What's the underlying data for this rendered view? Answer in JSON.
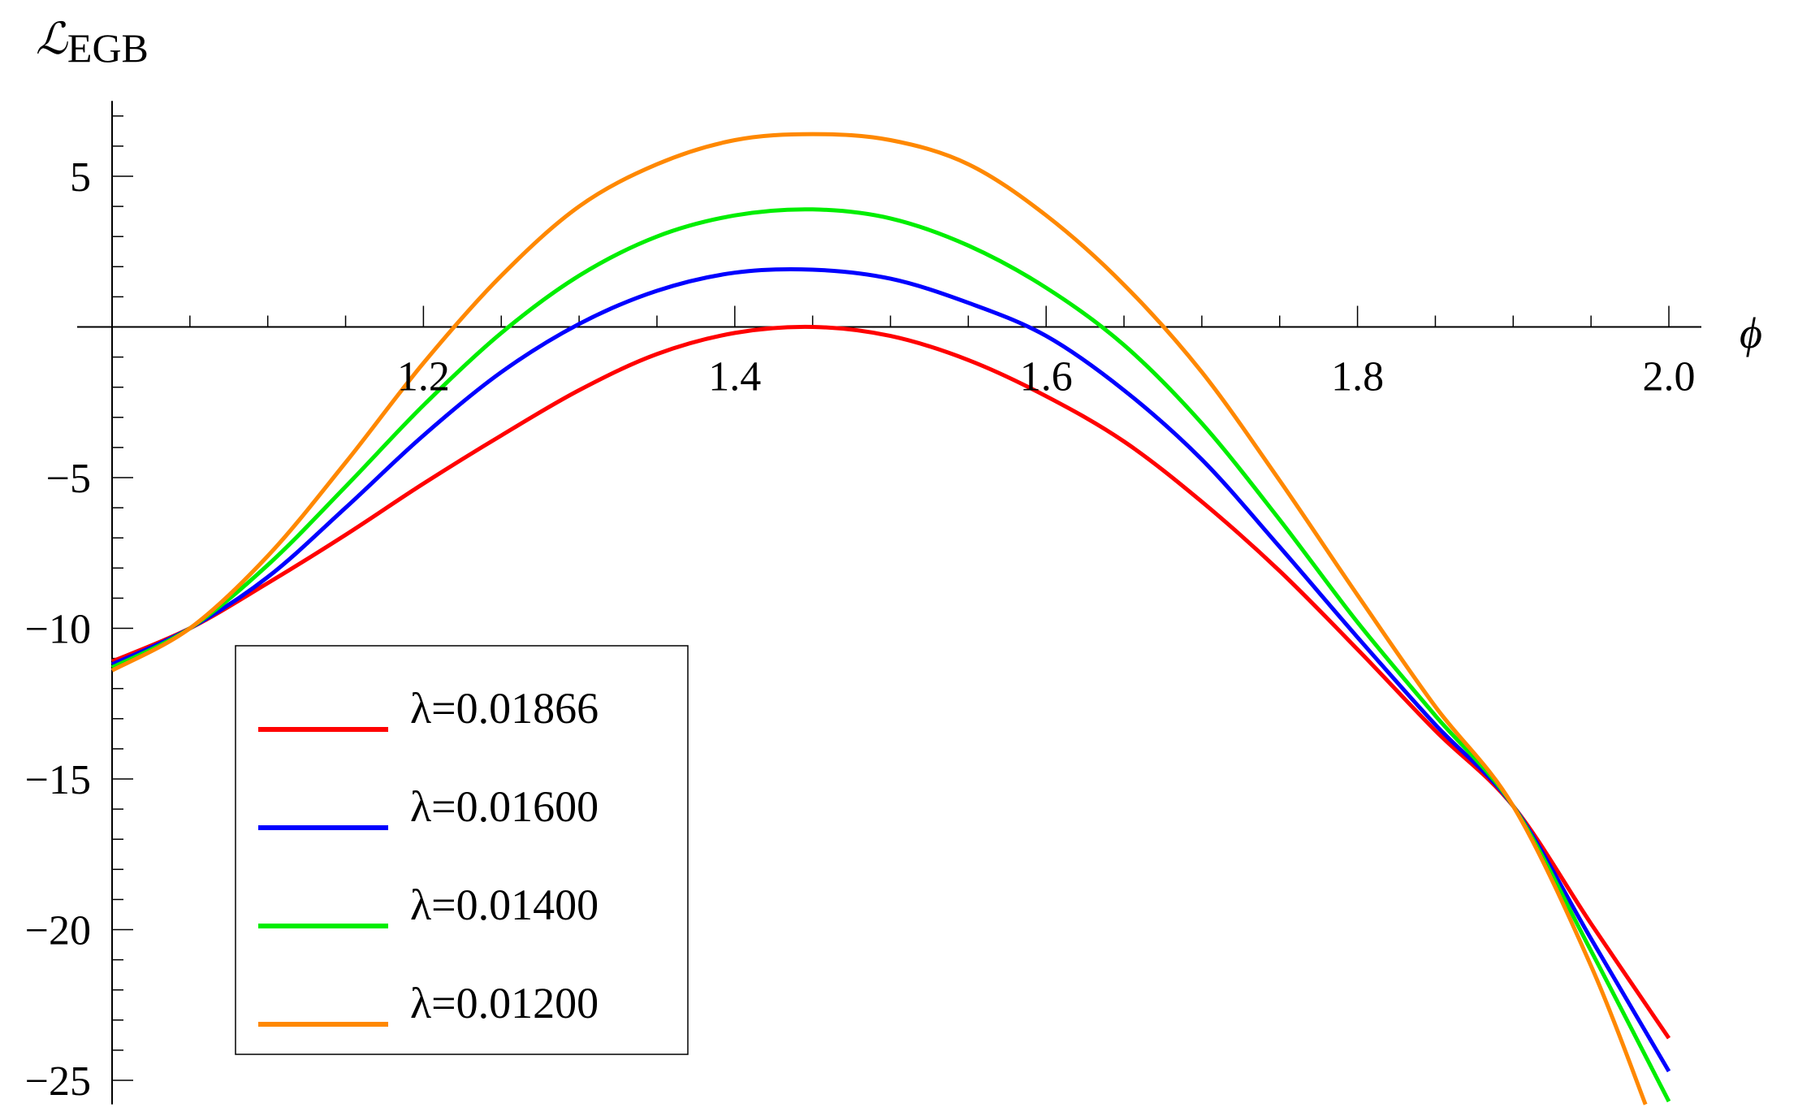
{
  "chart_data": {
    "type": "line",
    "title": "",
    "xlabel": "ϕ",
    "ylabel_main": "ℒ",
    "ylabel_sub": "EGB",
    "xlim": [
      1.0,
      2.0
    ],
    "ylim": [
      -25.8,
      7.5
    ],
    "x_ticks": [
      1.2,
      1.4,
      1.6,
      1.8,
      2.0
    ],
    "x_tick_labels": [
      "1.2",
      "1.4",
      "1.6",
      "1.8",
      "2.0"
    ],
    "y_ticks": [
      5,
      -5,
      -10,
      -15,
      -20,
      -25
    ],
    "y_tick_labels": [
      "5",
      "−5",
      "−10",
      "−15",
      "−20",
      "−25"
    ],
    "legend_position": "bottom-left",
    "series": [
      {
        "name": "λ=0.01866",
        "color": "#ff0000",
        "x": [
          1.0,
          1.05,
          1.1,
          1.15,
          1.2,
          1.25,
          1.3,
          1.35,
          1.4,
          1.45,
          1.5,
          1.55,
          1.6,
          1.65,
          1.7,
          1.75,
          1.8,
          1.85,
          1.9,
          1.95,
          2.0
        ],
        "y": [
          -11.1,
          -10.0,
          -8.5,
          -6.9,
          -5.2,
          -3.6,
          -2.1,
          -0.9,
          -0.2,
          0.0,
          -0.3,
          -1.1,
          -2.3,
          -3.8,
          -5.8,
          -8.1,
          -10.7,
          -13.4,
          -15.9,
          -19.8,
          -23.6
        ]
      },
      {
        "name": "λ=0.01600",
        "color": "#0000ff",
        "x": [
          1.0,
          1.05,
          1.1,
          1.15,
          1.2,
          1.25,
          1.3,
          1.35,
          1.4,
          1.45,
          1.5,
          1.55,
          1.6,
          1.65,
          1.7,
          1.75,
          1.8,
          1.85,
          1.9,
          1.95,
          2.0
        ],
        "y": [
          -11.2,
          -10.0,
          -8.3,
          -6.0,
          -3.6,
          -1.5,
          0.1,
          1.2,
          1.8,
          1.9,
          1.6,
          0.8,
          -0.3,
          -2.1,
          -4.4,
          -7.3,
          -10.3,
          -13.2,
          -15.9,
          -20.3,
          -24.7
        ]
      },
      {
        "name": "λ=0.01400",
        "color": "#00ee00",
        "x": [
          1.0,
          1.05,
          1.1,
          1.15,
          1.2,
          1.25,
          1.3,
          1.35,
          1.4,
          1.45,
          1.5,
          1.55,
          1.6,
          1.65,
          1.7,
          1.75,
          1.8,
          1.85,
          1.9,
          1.95,
          2.0
        ],
        "y": [
          -11.3,
          -10.0,
          -7.9,
          -5.3,
          -2.6,
          -0.2,
          1.7,
          3.0,
          3.7,
          3.9,
          3.6,
          2.7,
          1.3,
          -0.6,
          -3.2,
          -6.4,
          -9.8,
          -12.9,
          -15.9,
          -20.7,
          -25.7
        ]
      },
      {
        "name": "λ=0.01200",
        "color": "#ff8800",
        "x": [
          1.0,
          1.05,
          1.1,
          1.15,
          1.2,
          1.25,
          1.3,
          1.35,
          1.4,
          1.45,
          1.5,
          1.55,
          1.6,
          1.65,
          1.7,
          1.75,
          1.8,
          1.85,
          1.9,
          1.95,
          1.985
        ],
        "y": [
          -11.4,
          -10.0,
          -7.6,
          -4.5,
          -1.2,
          1.7,
          4.0,
          5.4,
          6.2,
          6.4,
          6.2,
          5.4,
          3.7,
          1.4,
          -1.5,
          -5.1,
          -8.9,
          -12.6,
          -15.9,
          -21.2,
          -25.8
        ]
      }
    ]
  }
}
